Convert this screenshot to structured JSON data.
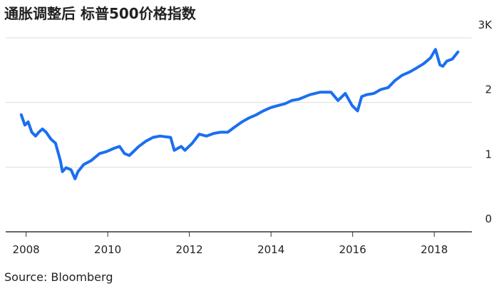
{
  "chart_data": {
    "type": "line",
    "title": "通胀调整后 标普500价格指数",
    "source": "Source: Bloomberg",
    "x": [
      2007.88,
      2007.97,
      2008.05,
      2008.14,
      2008.23,
      2008.31,
      2008.4,
      2008.49,
      2008.61,
      2008.72,
      2008.84,
      2008.89,
      2008.98,
      2009.1,
      2009.2,
      2009.27,
      2009.41,
      2009.59,
      2009.8,
      2009.97,
      2010.15,
      2010.29,
      2010.41,
      2010.53,
      2010.76,
      2010.93,
      2011.11,
      2011.28,
      2011.54,
      2011.63,
      2011.8,
      2011.89,
      2012.07,
      2012.24,
      2012.42,
      2012.59,
      2012.76,
      2012.94,
      2013.11,
      2013.29,
      2013.46,
      2013.64,
      2013.81,
      2013.99,
      2014.16,
      2014.34,
      2014.51,
      2014.68,
      2014.95,
      2015.21,
      2015.47,
      2015.64,
      2015.82,
      2015.99,
      2016.12,
      2016.22,
      2016.34,
      2016.52,
      2016.69,
      2016.87,
      2017.04,
      2017.21,
      2017.39,
      2017.56,
      2017.74,
      2017.91,
      2018.03,
      2018.14,
      2018.21,
      2018.31,
      2018.44,
      2018.58
    ],
    "values": [
      1.81,
      1.65,
      1.7,
      1.54,
      1.48,
      1.54,
      1.59,
      1.54,
      1.43,
      1.37,
      1.1,
      0.93,
      0.99,
      0.96,
      0.82,
      0.93,
      1.04,
      1.1,
      1.21,
      1.24,
      1.29,
      1.32,
      1.21,
      1.18,
      1.32,
      1.4,
      1.46,
      1.48,
      1.46,
      1.26,
      1.32,
      1.26,
      1.37,
      1.51,
      1.48,
      1.52,
      1.54,
      1.54,
      1.62,
      1.7,
      1.76,
      1.81,
      1.87,
      1.92,
      1.95,
      1.98,
      2.03,
      2.05,
      2.12,
      2.16,
      2.16,
      2.03,
      2.14,
      1.95,
      1.87,
      2.09,
      2.12,
      2.14,
      2.2,
      2.23,
      2.34,
      2.42,
      2.47,
      2.53,
      2.6,
      2.69,
      2.82,
      2.58,
      2.56,
      2.64,
      2.67,
      2.78
    ],
    "color": "#1a6ff0",
    "xlim": [
      2007.5,
      2018.8
    ],
    "xticks": [
      2008,
      2010,
      2012,
      2014,
      2016,
      2018
    ],
    "ylim": [
      0,
      3
    ],
    "yticks": [
      0,
      1,
      2,
      {
        "value": 3,
        "label": "3K"
      }
    ],
    "grid": true
  }
}
